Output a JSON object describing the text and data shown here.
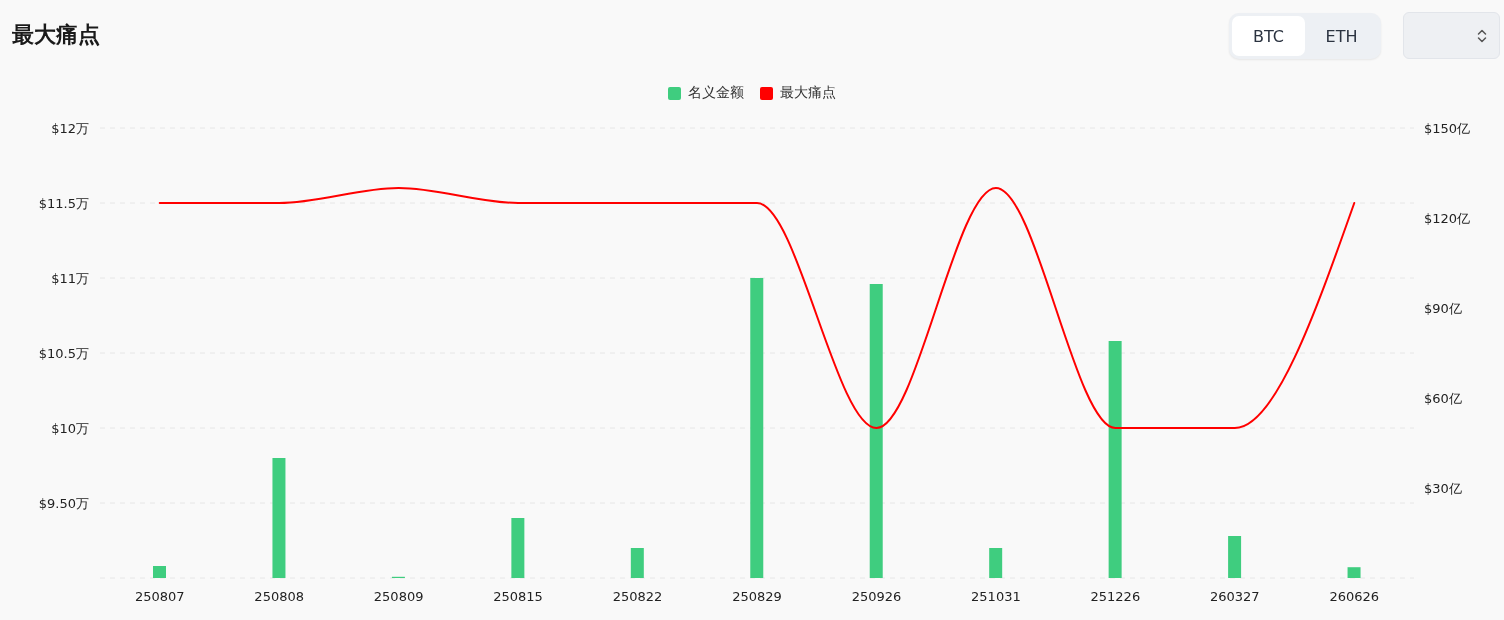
{
  "chart_data": {
    "type": "bar",
    "title": "最大痛点",
    "annotations": [
      "BTC",
      "ETH"
    ],
    "categories": [
      "250807",
      "250808",
      "250809",
      "250815",
      "250822",
      "250829",
      "250926",
      "251031",
      "251226",
      "260327",
      "260626"
    ],
    "series": [
      {
        "name": "名义金额",
        "axis": "y2",
        "color": "#3fcd7f",
        "values": [
          4,
          40,
          0.4,
          20,
          10,
          100,
          98,
          10,
          79,
          14,
          3.6
        ]
      },
      {
        "name": "最大痛点",
        "type": "line",
        "color": "#ff0000",
        "values": [
          11.5,
          11.5,
          11.6,
          11.5,
          11.5,
          11.5,
          10,
          11.6,
          10,
          10,
          11.5
        ]
      }
    ],
    "ylim": [
      9,
      12
    ],
    "yticks": [
      {
        "value": 9,
        "label": null
      },
      {
        "value": 9.5,
        "label": "$9.50万"
      },
      {
        "value": 10,
        "label": "$10万"
      },
      {
        "value": 10.5,
        "label": "$10.5万"
      },
      {
        "value": 11,
        "label": "$11万"
      },
      {
        "value": 11.5,
        "label": "$11.5万"
      },
      {
        "value": 12,
        "label": "$12万"
      }
    ],
    "y2lim": [
      0,
      150
    ],
    "y2ticks": [
      {
        "value": 30,
        "label": "$30亿"
      },
      {
        "value": 60,
        "label": "$60亿"
      },
      {
        "value": 90,
        "label": "$90亿"
      },
      {
        "value": 120,
        "label": "$120亿"
      },
      {
        "value": 150,
        "label": "$150亿"
      }
    ],
    "grid": "y",
    "legend": "top",
    "marker": "none",
    "line_style": "solid"
  }
}
